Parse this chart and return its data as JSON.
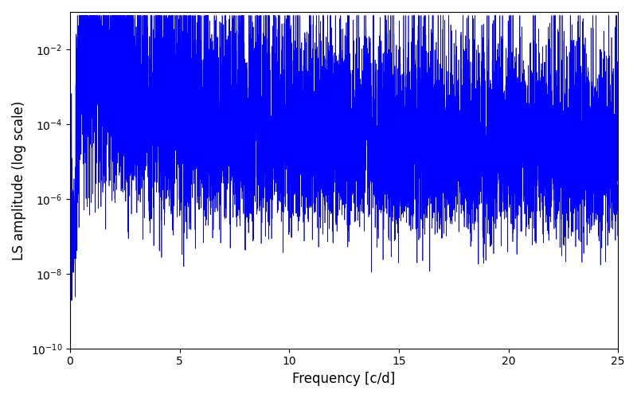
{
  "title": "",
  "xlabel": "Frequency [c/d]",
  "ylabel": "LS amplitude (log scale)",
  "xlim": [
    0,
    25
  ],
  "ylim": [
    1e-10,
    0.1
  ],
  "line_color": "#0000ff",
  "line_width": 0.5,
  "background_color": "#ffffff",
  "figsize": [
    8.0,
    5.0
  ],
  "dpi": 100,
  "seed": 12345,
  "n_points": 8000,
  "freq_max": 25.0,
  "peak_freq": 0.5,
  "peak_amp": 0.04,
  "decay_rate": 1.8,
  "noise_floor": 1e-06,
  "spike_depth": 3.5,
  "xlabel_fontsize": 12,
  "ylabel_fontsize": 12
}
